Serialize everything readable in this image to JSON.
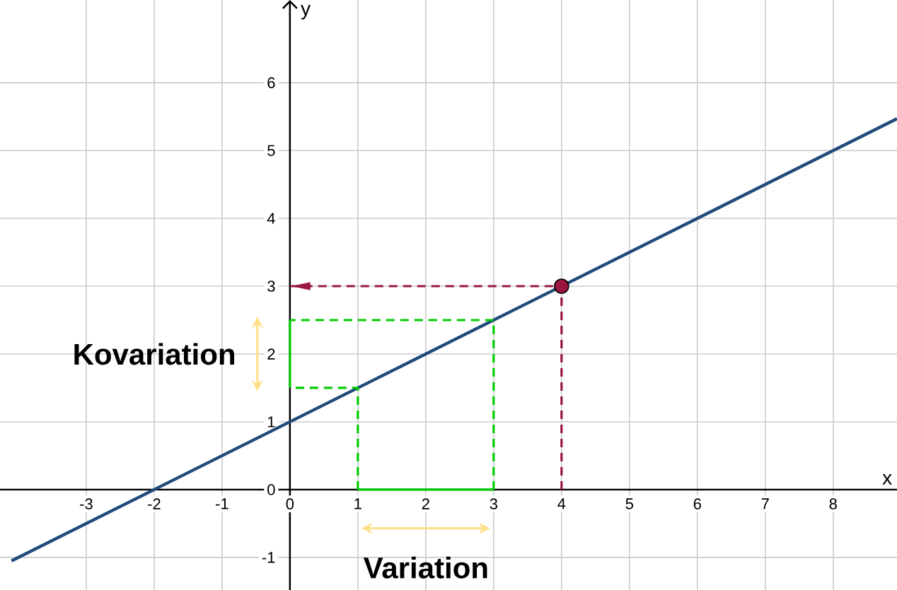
{
  "chart_data": {
    "type": "line",
    "xlabel": "x",
    "ylabel": "y",
    "xlim": [
      -4.27,
      8.94
    ],
    "ylim": [
      -1.48,
      7.22
    ],
    "xticks": [
      -3,
      -2,
      -1,
      0,
      1,
      2,
      3,
      4,
      5,
      6,
      7,
      8
    ],
    "yticks": [
      -1,
      0,
      1,
      2,
      3,
      4,
      5,
      6
    ],
    "grid": true,
    "series": [
      {
        "type": "line",
        "color": "#1f4a7a",
        "line_style": "solid",
        "marker": "none",
        "x": [
          -4.1,
          8.94
        ],
        "values": [
          -1.05,
          5.47
        ]
      },
      {
        "type": "line",
        "color": "#00cc00",
        "line_style": "solid",
        "marker": "none",
        "x": [
          1,
          3
        ],
        "values": [
          0,
          0
        ]
      },
      {
        "type": "line",
        "color": "#00cc00",
        "line_style": "solid",
        "marker": "none",
        "x": [
          0,
          0
        ],
        "values": [
          1.5,
          2.5
        ]
      },
      {
        "type": "line",
        "color": "#00cc00",
        "line_style": "dashed",
        "marker": "none",
        "x": [
          1,
          1,
          0
        ],
        "values": [
          0,
          1.5,
          1.5
        ]
      },
      {
        "type": "line",
        "color": "#00cc00",
        "line_style": "dashed",
        "marker": "none",
        "x": [
          3,
          3,
          0
        ],
        "values": [
          0,
          2.5,
          2.5
        ]
      },
      {
        "type": "line",
        "color": "#99163f",
        "line_style": "dashed",
        "marker": "none",
        "x": [
          4,
          4,
          0
        ],
        "values": [
          0,
          3,
          3
        ]
      },
      {
        "type": "scatter",
        "color": "#99163f",
        "marker": "circle",
        "x": [
          4
        ],
        "values": [
          3
        ]
      }
    ],
    "annotations": [
      "Kovariation",
      "Variation"
    ]
  }
}
